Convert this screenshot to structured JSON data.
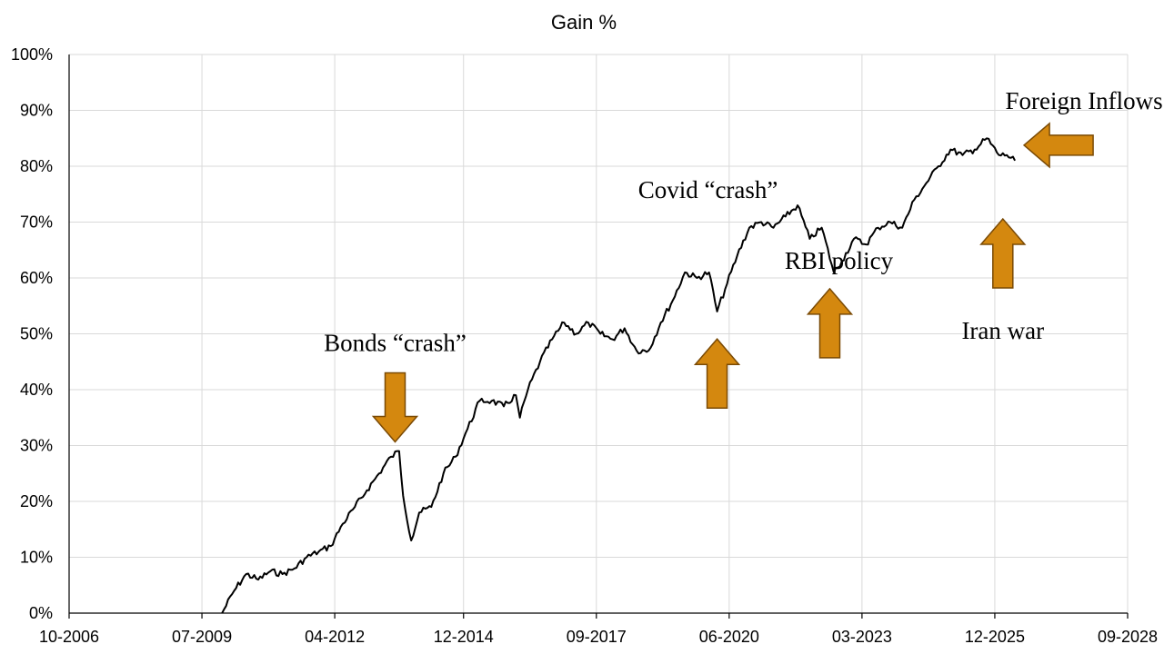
{
  "chart_data": {
    "type": "line",
    "title": "Gain %",
    "xlabel": "",
    "ylabel": "",
    "grid": true,
    "legend": "none",
    "xlim": [
      "2006-10",
      "2028-09"
    ],
    "ylim": [
      0,
      100
    ],
    "x_ticks": [
      "10-2006",
      "07-2009",
      "04-2012",
      "12-2014",
      "09-2017",
      "06-2020",
      "03-2023",
      "12-2025",
      "09-2028"
    ],
    "y_ticks": [
      "0%",
      "10%",
      "20%",
      "30%",
      "40%",
      "50%",
      "60%",
      "70%",
      "80%",
      "90%",
      "100%"
    ],
    "series": [
      {
        "color": "#000000",
        "x": [
          "2009-12",
          "2010-03",
          "2010-06",
          "2010-09",
          "2010-12",
          "2011-03",
          "2011-06",
          "2011-09",
          "2011-12",
          "2012-03",
          "2012-06",
          "2012-09",
          "2012-12",
          "2013-03",
          "2013-06",
          "2013-08",
          "2013-09",
          "2013-11",
          "2014-01",
          "2014-04",
          "2014-07",
          "2014-10",
          "2015-01",
          "2015-04",
          "2015-07",
          "2015-10",
          "2016-01",
          "2016-02",
          "2016-04",
          "2016-07",
          "2016-10",
          "2017-01",
          "2017-04",
          "2017-07",
          "2017-10",
          "2018-01",
          "2018-04",
          "2018-07",
          "2018-10",
          "2019-01",
          "2019-04",
          "2019-07",
          "2019-10",
          "2020-01",
          "2020-03",
          "2020-05",
          "2020-08",
          "2020-11",
          "2021-02",
          "2021-05",
          "2021-08",
          "2021-11",
          "2022-02",
          "2022-05",
          "2022-08",
          "2022-10",
          "2023-01",
          "2023-04",
          "2023-07",
          "2023-10",
          "2024-01",
          "2024-04",
          "2024-07",
          "2024-10",
          "2025-01",
          "2025-04",
          "2025-07",
          "2025-10",
          "2026-01",
          "2026-03",
          "2026-05"
        ],
        "y": [
          0,
          4,
          7,
          6,
          7.5,
          7,
          8,
          10,
          11,
          12,
          16,
          19,
          22,
          25,
          28,
          29,
          21,
          13,
          18,
          19,
          25,
          28,
          33,
          38,
          38,
          37,
          39,
          35,
          40,
          45,
          49,
          52,
          50,
          52,
          50,
          49,
          51,
          47,
          47,
          52,
          56,
          61,
          60,
          61,
          54,
          58,
          64,
          69,
          70,
          69,
          71,
          73,
          67,
          69,
          61,
          63,
          67,
          66,
          69,
          70,
          69,
          74,
          77,
          80,
          83,
          82,
          83,
          85,
          82,
          82,
          81
        ]
      }
    ],
    "annotations": [
      {
        "text": "Bonds “crash”",
        "x": "2013-07",
        "y": 30,
        "arrow": "down"
      },
      {
        "text": "Covid “crash”",
        "x": "2020-03",
        "y": 52,
        "arrow": "up"
      },
      {
        "text": "RBI policy",
        "x": "2022-07",
        "y": 61,
        "arrow": "up"
      },
      {
        "text": "Iran war",
        "x": "2026-02",
        "y": 73.5,
        "arrow": "up"
      },
      {
        "text": "Foreign Inflows",
        "x": "2026-05",
        "y": 81,
        "arrow": "left"
      }
    ]
  }
}
